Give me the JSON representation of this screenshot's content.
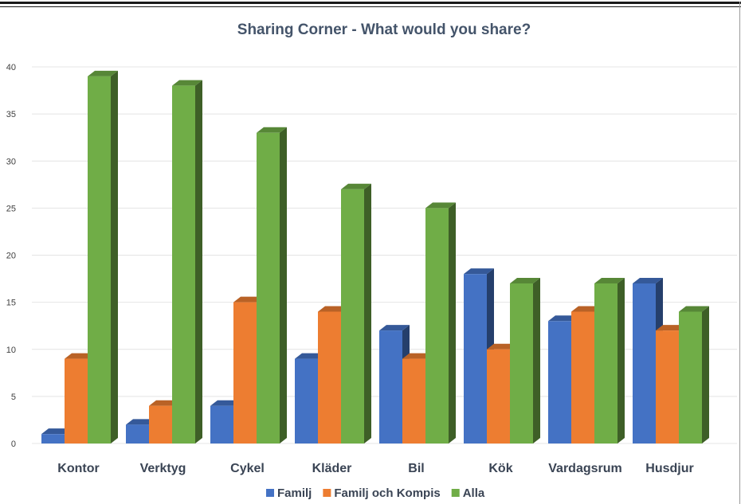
{
  "chart_data": {
    "type": "bar",
    "style": "3d-clustered-column",
    "title": "Sharing Corner - What would you share?",
    "xlabel": "",
    "ylabel": "",
    "ylim": [
      0,
      40
    ],
    "yticks": [
      0,
      5,
      10,
      15,
      20,
      25,
      30,
      35,
      40
    ],
    "grid": true,
    "legend_position": "bottom",
    "categories": [
      "Kontor",
      "Verktyg",
      "Cykel",
      "Kläder",
      "Bil",
      "Kök",
      "Vardagsrum",
      "Husdjur"
    ],
    "series": [
      {
        "name": "Familj",
        "color": "#4472c4",
        "values": [
          1,
          2,
          4,
          9,
          12,
          18,
          13,
          17
        ]
      },
      {
        "name": "Familj och Kompis",
        "color": "#ed7d31",
        "values": [
          9,
          4,
          15,
          14,
          9,
          10,
          14,
          12
        ]
      },
      {
        "name": "Alla",
        "color": "#70ad47",
        "values": [
          39,
          38,
          33,
          27,
          25,
          17,
          17,
          14
        ]
      }
    ]
  }
}
